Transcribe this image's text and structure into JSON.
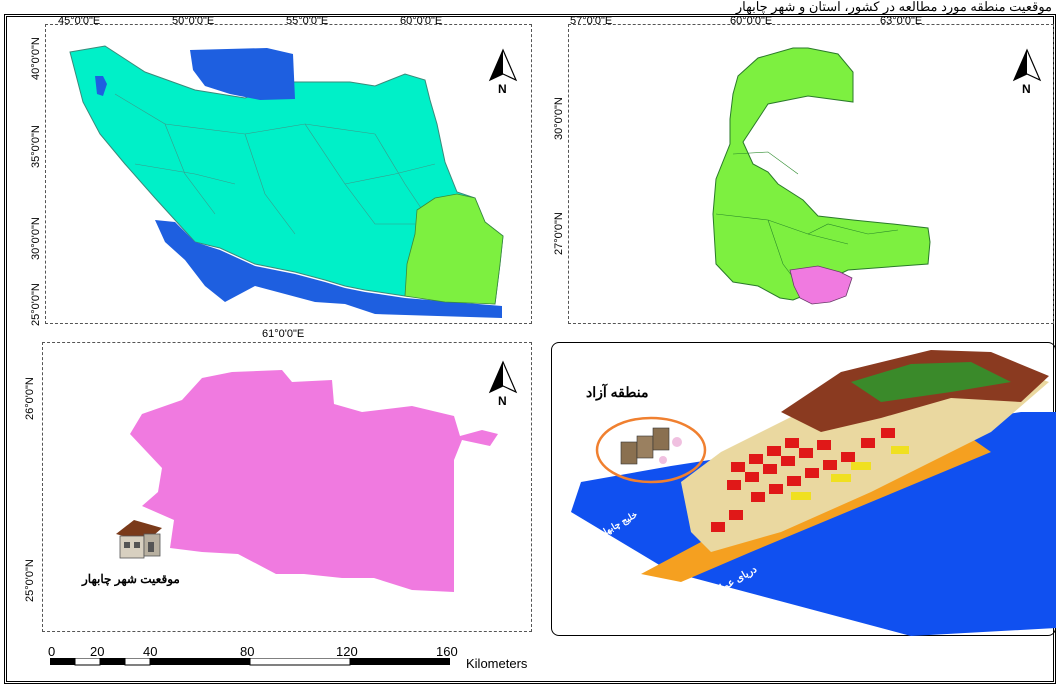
{
  "caption": "موقعیت منطقه مورد مطالعه در کشور، استان و شهر چابهار",
  "colors": {
    "iran": "#00f0c8",
    "caspian": "#1e5fe0",
    "gulf": "#1e5fe0",
    "province": "#7df040",
    "city": "#f07ae0",
    "sea": "#1050f0",
    "beach": "#f5a020"
  },
  "panel1": {
    "lon_ticks": [
      "45°0'0\"E",
      "50°0'0\"E",
      "55°0'0\"E",
      "60°0'0\"E"
    ],
    "lat_ticks": [
      "40°0'0\"N",
      "35°0'0\"N",
      "30°0'0\"N",
      "25°0'0\"N"
    ],
    "north": "N"
  },
  "panel2": {
    "lon_ticks": [
      "57°0'0\"E",
      "60°0'0\"E",
      "63°0'0\"E"
    ],
    "lat_ticks": [
      "30°0'0\"N",
      "27°0'0\"N"
    ],
    "north": "N"
  },
  "panel3": {
    "lon_ticks": [
      "61°0'0\"E"
    ],
    "lat_ticks": [
      "26°0'0\"N",
      "25°0'0\"N"
    ],
    "north": "N",
    "location_label": "موقعیت شهر چابهار",
    "house_icon": "house-icon"
  },
  "panel4": {
    "zone_label": "منطقه آزاد",
    "sea_label_1": "خلیج چابهار",
    "sea_label_2": "دریای عمان"
  },
  "scale_bar": {
    "ticks": [
      "0",
      "20",
      "40",
      "80",
      "120",
      "160"
    ],
    "unit": "Kilometers"
  }
}
